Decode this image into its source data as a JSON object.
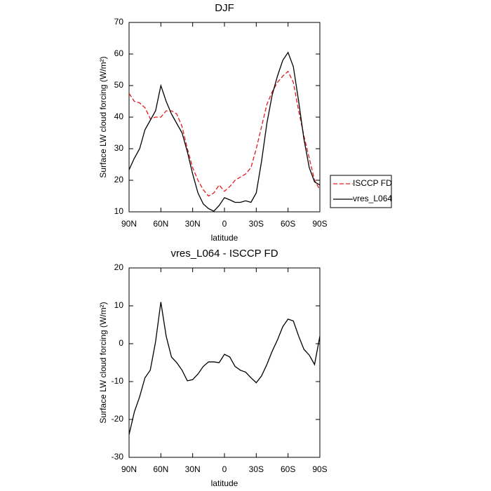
{
  "chart_data": [
    {
      "type": "line",
      "title": "DJF",
      "xlabel": "latitude",
      "ylabel": "Surface LW cloud forcing (W/m²)",
      "x": [
        90,
        85,
        80,
        75,
        70,
        65,
        60,
        55,
        50,
        45,
        40,
        35,
        30,
        25,
        20,
        15,
        10,
        5,
        0,
        -5,
        -10,
        -15,
        -20,
        -25,
        -30,
        -35,
        -40,
        -45,
        -50,
        -55,
        -60,
        -65,
        -70,
        -75,
        -80,
        -85,
        -90
      ],
      "series": [
        {
          "name": "ISCCP FD",
          "color": "#e41a1c",
          "dash": true,
          "values": [
            47.5,
            45,
            44.5,
            43,
            39.5,
            40,
            40,
            42,
            42,
            41,
            37,
            30,
            24,
            20,
            17,
            15,
            16,
            18.5,
            16.5,
            18,
            20,
            21,
            22,
            24,
            30,
            37,
            44,
            48,
            51,
            53,
            54.5,
            51,
            42,
            34,
            27,
            20,
            17
          ]
        },
        {
          "name": "vres_L064",
          "color": "#000000",
          "dash": false,
          "values": [
            23.3,
            27,
            30,
            36,
            39,
            42,
            50,
            45,
            41,
            38,
            35,
            29,
            22,
            16,
            12.5,
            11,
            10.2,
            12,
            14.5,
            13.8,
            13,
            13,
            13.5,
            13,
            16,
            26,
            38,
            47,
            53,
            58,
            60.5,
            56,
            45,
            33,
            24,
            19.5,
            18.5
          ]
        }
      ],
      "xlim": [
        90,
        -90
      ],
      "xticks": [
        {
          "value": 90,
          "label": "90N"
        },
        {
          "value": 60,
          "label": "60N"
        },
        {
          "value": 30,
          "label": "30N"
        },
        0,
        {
          "value": -30,
          "label": "30S"
        },
        {
          "value": -60,
          "label": "60S"
        },
        {
          "value": -90,
          "label": "90S"
        }
      ],
      "ylim": [
        10,
        70
      ],
      "yticks": [
        10,
        20,
        30,
        40,
        50,
        60,
        70
      ],
      "legend": "right"
    },
    {
      "type": "line",
      "title": "vres_L064 - ISCCP FD",
      "xlabel": "latitude",
      "ylabel": "Surface LW cloud forcing (W/m²)",
      "x": [
        90,
        85,
        80,
        75,
        70,
        65,
        60,
        55,
        50,
        45,
        40,
        35,
        30,
        25,
        20,
        15,
        10,
        5,
        0,
        -5,
        -10,
        -15,
        -20,
        -25,
        -30,
        -35,
        -40,
        -45,
        -50,
        -55,
        -60,
        -65,
        -70,
        -75,
        -80,
        -85,
        -90
      ],
      "series": [
        {
          "color": "#000000",
          "dash": false,
          "values": [
            -24,
            -18,
            -14,
            -9,
            -7,
            0.5,
            11,
            2,
            -3.5,
            -5,
            -7,
            -9.8,
            -9.5,
            -8,
            -6,
            -4.8,
            -4.8,
            -5,
            -2.8,
            -3.5,
            -6,
            -7,
            -7.5,
            -9,
            -10.3,
            -8.5,
            -5.5,
            -2,
            1,
            4.5,
            6.5,
            6,
            2,
            -1.5,
            -3,
            -5.5,
            2
          ]
        }
      ],
      "xlim": [
        90,
        -90
      ],
      "xticks": [
        {
          "value": 90,
          "label": "90N"
        },
        {
          "value": 60,
          "label": "60N"
        },
        {
          "value": 30,
          "label": "30N"
        },
        0,
        {
          "value": -30,
          "label": "30S"
        },
        {
          "value": -60,
          "label": "60S"
        },
        {
          "value": -90,
          "label": "90S"
        }
      ],
      "ylim": [
        -30,
        20
      ],
      "yticks": [
        -30,
        -20,
        -10,
        0,
        10,
        20
      ]
    }
  ]
}
